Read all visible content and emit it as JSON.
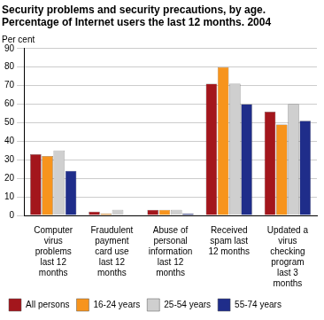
{
  "chart_data": {
    "type": "bar",
    "title": "Security problems and security precautions, by age.",
    "subtitle": "Percentage of Internet users the last 12 months. 2004",
    "ylabel": "Per cent",
    "categories": [
      "Computer virus problems last 12 months",
      "Fraudulent payment card use last 12 months",
      "Abuse of personal information last 12 months",
      "Received spam last 12 months",
      "Updated a virus checking program last 3 months"
    ],
    "series": [
      {
        "name": "All persons",
        "color": "#a3161c",
        "values": [
          33,
          2,
          3,
          71,
          56
        ]
      },
      {
        "name": "16-24 years",
        "color": "#f7941d",
        "values": [
          32,
          1,
          3,
          80,
          49
        ]
      },
      {
        "name": "25-54 years",
        "color": "#cfcfcf",
        "values": [
          35,
          3,
          3,
          71,
          60
        ]
      },
      {
        "name": "55-74 years",
        "color": "#1f2d8a",
        "values": [
          24,
          0,
          1,
          60,
          51
        ]
      }
    ],
    "ylim": [
      0,
      90
    ],
    "yticks": [
      0,
      10,
      20,
      30,
      40,
      50,
      60,
      70,
      80,
      90
    ],
    "grid": true,
    "legend": "bottom"
  }
}
